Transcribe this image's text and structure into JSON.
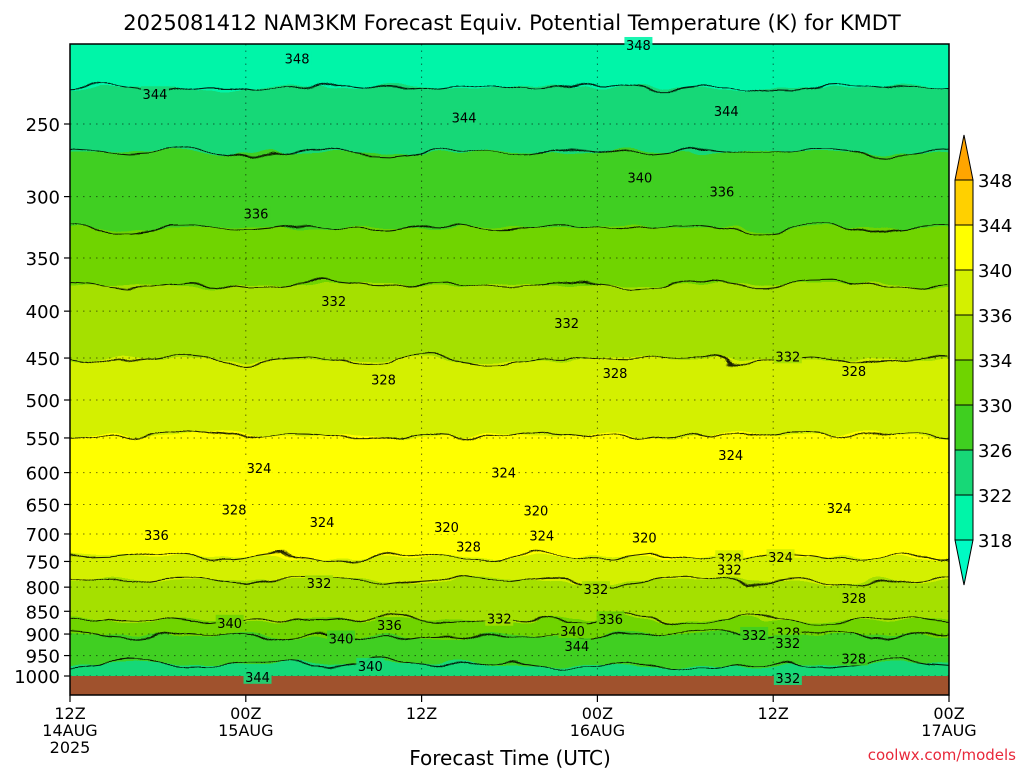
{
  "chart_data": {
    "type": "heatmap",
    "title": "2025081412 NAM3KM Forecast Equiv. Potential Temperature (K) for KMDT",
    "xlabel": "Forecast Time (UTC)",
    "x_unit": "forecast hour",
    "x_range": [
      0,
      60
    ],
    "x_ticks": [
      {
        "x": 0,
        "lines": [
          "12Z",
          "14AUG",
          "2025"
        ]
      },
      {
        "x": 12,
        "lines": [
          "00Z",
          "15AUG"
        ]
      },
      {
        "x": 24,
        "lines": [
          "12Z"
        ]
      },
      {
        "x": 36,
        "lines": [
          "00Z",
          "16AUG"
        ]
      },
      {
        "x": 48,
        "lines": [
          "12Z"
        ]
      },
      {
        "x": 60,
        "lines": [
          "00Z",
          "17AUG"
        ]
      }
    ],
    "ylabel": "",
    "y_scale": "log-pressure",
    "y_range_hPa": [
      1000,
      200
    ],
    "y_ticks": [
      250,
      300,
      350,
      400,
      450,
      500,
      550,
      600,
      650,
      700,
      750,
      800,
      850,
      900,
      950,
      1000
    ],
    "colorbar": {
      "labels": [
        348,
        344,
        340,
        336,
        334,
        330,
        326,
        322,
        318
      ],
      "colors": [
        "#ffa500",
        "#ffd000",
        "#ffff00",
        "#d4f000",
        "#a5e000",
        "#6fd400",
        "#3fcf20",
        "#17d877",
        "#00f5a8",
        "#00fbc4"
      ]
    },
    "profile_theta_e_K": [
      {
        "p": 1000,
        "theta": 341
      },
      {
        "p": 950,
        "theta": 339
      },
      {
        "p": 900,
        "theta": 336
      },
      {
        "p": 850,
        "theta": 333
      },
      {
        "p": 800,
        "theta": 331
      },
      {
        "p": 750,
        "theta": 327
      },
      {
        "p": 700,
        "theta": 322
      },
      {
        "p": 650,
        "theta": 323
      },
      {
        "p": 600,
        "theta": 324.5
      },
      {
        "p": 550,
        "theta": 326
      },
      {
        "p": 500,
        "theta": 328
      },
      {
        "p": 450,
        "theta": 330
      },
      {
        "p": 400,
        "theta": 333
      },
      {
        "p": 350,
        "theta": 335
      },
      {
        "p": 300,
        "theta": 337
      },
      {
        "p": 250,
        "theta": 342
      },
      {
        "p": 200,
        "theta": 347
      }
    ],
    "contour_labels": [
      {
        "text": "348",
        "t": 15.5,
        "p": 212
      },
      {
        "text": "348",
        "t": 38.8,
        "p": 205
      },
      {
        "text": "344",
        "t": 5.8,
        "p": 232
      },
      {
        "text": "344",
        "t": 26.9,
        "p": 246
      },
      {
        "text": "344",
        "t": 44.8,
        "p": 242
      },
      {
        "text": "340",
        "t": 38.9,
        "p": 286
      },
      {
        "text": "336",
        "t": 12.7,
        "p": 313
      },
      {
        "text": "336",
        "t": 44.5,
        "p": 296
      },
      {
        "text": "332",
        "t": 18.0,
        "p": 390
      },
      {
        "text": "332",
        "t": 33.9,
        "p": 412
      },
      {
        "text": "332",
        "t": 49.0,
        "p": 448
      },
      {
        "text": "328",
        "t": 21.4,
        "p": 475
      },
      {
        "text": "328",
        "t": 37.2,
        "p": 467
      },
      {
        "text": "328",
        "t": 53.5,
        "p": 465
      },
      {
        "text": "324",
        "t": 12.9,
        "p": 593
      },
      {
        "text": "324",
        "t": 29.6,
        "p": 600
      },
      {
        "text": "324",
        "t": 45.1,
        "p": 574
      },
      {
        "text": "324",
        "t": 52.5,
        "p": 656
      },
      {
        "text": "324",
        "t": 17.2,
        "p": 679
      },
      {
        "text": "324",
        "t": 32.2,
        "p": 703
      },
      {
        "text": "324",
        "t": 48.5,
        "p": 742
      },
      {
        "text": "328",
        "t": 11.2,
        "p": 658
      },
      {
        "text": "328",
        "t": 27.2,
        "p": 722
      },
      {
        "text": "328",
        "t": 45.0,
        "p": 744
      },
      {
        "text": "328",
        "t": 49.0,
        "p": 896
      },
      {
        "text": "328",
        "t": 53.5,
        "p": 822
      },
      {
        "text": "328",
        "t": 53.5,
        "p": 957
      },
      {
        "text": "320",
        "t": 25.7,
        "p": 688
      },
      {
        "text": "320",
        "t": 31.8,
        "p": 660
      },
      {
        "text": "320",
        "t": 39.2,
        "p": 706
      },
      {
        "text": "336",
        "t": 5.9,
        "p": 702
      },
      {
        "text": "332",
        "t": 17.0,
        "p": 792
      },
      {
        "text": "332",
        "t": 35.9,
        "p": 804
      },
      {
        "text": "332",
        "t": 29.3,
        "p": 866
      },
      {
        "text": "332",
        "t": 45.0,
        "p": 765
      },
      {
        "text": "332",
        "t": 46.7,
        "p": 902
      },
      {
        "text": "332",
        "t": 49.0,
        "p": 920
      },
      {
        "text": "332",
        "t": 49.0,
        "p": 1005
      },
      {
        "text": "340",
        "t": 10.9,
        "p": 875
      },
      {
        "text": "340",
        "t": 18.5,
        "p": 910
      },
      {
        "text": "340",
        "t": 20.5,
        "p": 975
      },
      {
        "text": "340",
        "t": 34.3,
        "p": 893
      },
      {
        "text": "336",
        "t": 21.8,
        "p": 880
      },
      {
        "text": "336",
        "t": 36.9,
        "p": 867
      },
      {
        "text": "344",
        "t": 34.6,
        "p": 928
      },
      {
        "text": "344",
        "t": 12.8,
        "p": 1002
      }
    ],
    "ground_band": "below 1000 hPa",
    "grid": true
  },
  "credit": "coolwx.com/models"
}
